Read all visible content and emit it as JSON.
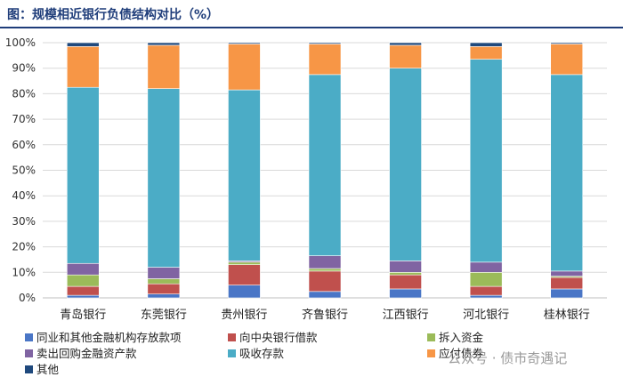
{
  "header": {
    "title": "图：规模相近银行负债结构对比（%）"
  },
  "watermark": {
    "text": "公众号 · 债市奇遇记"
  },
  "chart_data": {
    "type": "bar",
    "stacked": true,
    "percent": true,
    "categories": [
      "青岛银行",
      "东莞银行",
      "贵州银行",
      "齐鲁银行",
      "江西银行",
      "河北银行",
      "桂林银行"
    ],
    "yticks": [
      "0%",
      "10%",
      "20%",
      "30%",
      "40%",
      "50%",
      "60%",
      "70%",
      "80%",
      "90%",
      "100%"
    ],
    "ylim": [
      0,
      100
    ],
    "grid": true,
    "legend_position": "bottom",
    "series": [
      {
        "name": "同业和其他金融机构存放款项",
        "color": "#4a76c6",
        "values": [
          1.0,
          1.5,
          5.0,
          2.5,
          3.5,
          1.0,
          3.5
        ]
      },
      {
        "name": "向中央银行借款",
        "color": "#c0504d",
        "values": [
          3.5,
          4.0,
          8.0,
          8.0,
          5.5,
          3.5,
          4.5
        ]
      },
      {
        "name": "拆入资金",
        "color": "#9bbb59",
        "values": [
          4.5,
          2.0,
          1.0,
          1.0,
          1.0,
          5.5,
          0.5
        ]
      },
      {
        "name": "卖出回购金融资产款",
        "color": "#8064a2",
        "values": [
          4.5,
          4.5,
          0.5,
          5.0,
          4.5,
          4.0,
          2.0
        ]
      },
      {
        "name": "吸收存款",
        "color": "#4bacc6",
        "values": [
          69.0,
          70.0,
          67.0,
          71.0,
          75.5,
          79.5,
          77.0
        ]
      },
      {
        "name": "应付债券",
        "color": "#f79646",
        "values": [
          16.0,
          17.0,
          18.0,
          12.0,
          9.0,
          5.0,
          12.0
        ]
      },
      {
        "name": "其他",
        "color": "#1f497d",
        "values": [
          1.5,
          1.0,
          0.5,
          0.5,
          1.0,
          1.5,
          0.5
        ]
      }
    ]
  }
}
